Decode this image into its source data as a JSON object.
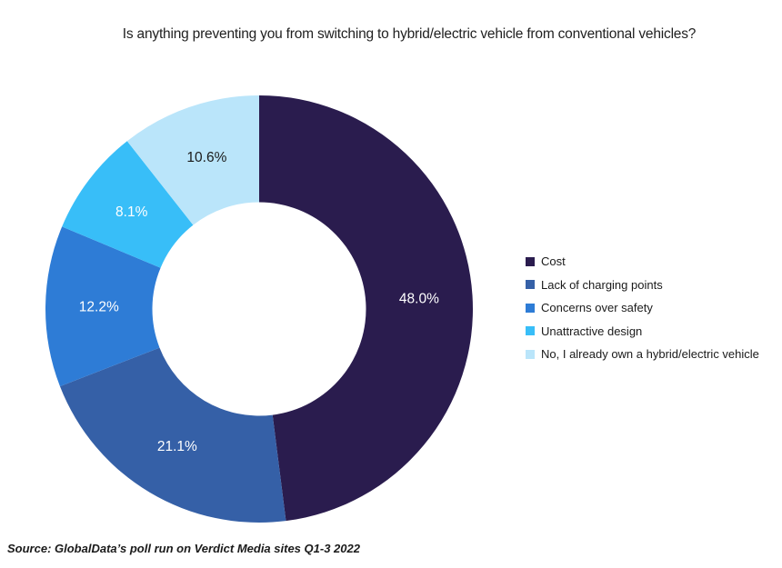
{
  "title": "Is anything preventing you from switching to hybrid/electric vehicle from conventional vehicles?",
  "source": "Source: GlobalData’s poll run on Verdict Media sites Q1-3 2022",
  "chart_data": {
    "type": "pie",
    "subtype": "donut",
    "title": "Is anything preventing you from switching to hybrid/electric vehicle from conventional vehicles?",
    "categories": [
      "Cost",
      "Lack of charging points",
      "Concerns over safety",
      "Unattractive design",
      "No, I already own a hybrid/electric vehicle"
    ],
    "values": [
      48.0,
      21.1,
      12.2,
      8.1,
      10.6
    ],
    "data_labels": [
      "48.0%",
      "21.1%",
      "12.2%",
      "8.1%",
      "10.6%"
    ],
    "colors": [
      "#2A1C4E",
      "#3560A7",
      "#2E7CD6",
      "#38BEF8",
      "#BAE5FA"
    ],
    "label_colors": [
      "#FFFFFF",
      "#FFFFFF",
      "#FFFFFF",
      "#FFFFFF",
      "#1A1A1A"
    ],
    "start_angle_deg": 0,
    "direction": "clockwise",
    "inner_radius_ratio": 0.5,
    "legend_position": "right",
    "source": "Source: GlobalData’s poll run on Verdict Media sites Q1-3 2022"
  }
}
